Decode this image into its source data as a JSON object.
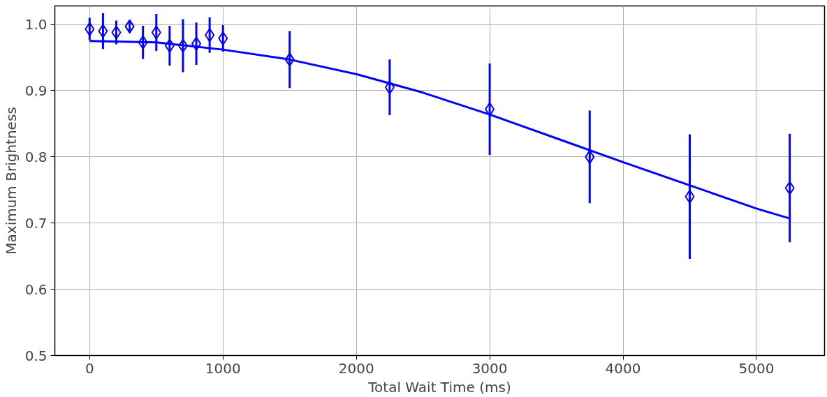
{
  "chart_data": {
    "type": "scatter",
    "xlabel": "Total Wait Time (ms)",
    "ylabel": "Maximum Brightness",
    "xlim": [
      -261,
      5511
    ],
    "ylim": [
      0.5,
      1.028
    ],
    "xticks": [
      0,
      1000,
      2000,
      3000,
      4000,
      5000
    ],
    "yticks": [
      {
        "value": 0.5,
        "label": "0.5"
      },
      {
        "value": 0.6,
        "label": "0.6"
      },
      {
        "value": 0.7,
        "label": "0.7"
      },
      {
        "value": 0.8,
        "label": "0.8"
      },
      {
        "value": 0.9,
        "label": "0.9"
      },
      {
        "value": 1.0,
        "label": "1.0"
      }
    ],
    "grid": true,
    "series": [
      {
        "marker": "diamond",
        "color": "#0000ff",
        "x": [
          0,
          100,
          200,
          300,
          400,
          500,
          600,
          700,
          800,
          900,
          1000,
          1500,
          2250,
          3000,
          3750,
          4500,
          5250
        ],
        "values": [
          0.993,
          0.99,
          0.988,
          0.997,
          0.973,
          0.988,
          0.968,
          0.968,
          0.971,
          0.984,
          0.979,
          0.947,
          0.905,
          0.872,
          0.8,
          0.74,
          0.753
        ],
        "errors": [
          0.017,
          0.027,
          0.018,
          0.01,
          0.025,
          0.028,
          0.03,
          0.04,
          0.032,
          0.027,
          0.02,
          0.043,
          0.042,
          0.069,
          0.07,
          0.094,
          0.082
        ]
      },
      {
        "type": "line",
        "line_style": "solid",
        "color": "#0000ff",
        "x": [
          0,
          500,
          1000,
          1500,
          2000,
          2500,
          3000,
          3500,
          4000,
          4500,
          5000,
          5250
        ],
        "values": [
          0.975,
          0.973,
          0.962,
          0.947,
          0.925,
          0.897,
          0.864,
          0.828,
          0.792,
          0.757,
          0.722,
          0.707
        ]
      }
    ]
  }
}
